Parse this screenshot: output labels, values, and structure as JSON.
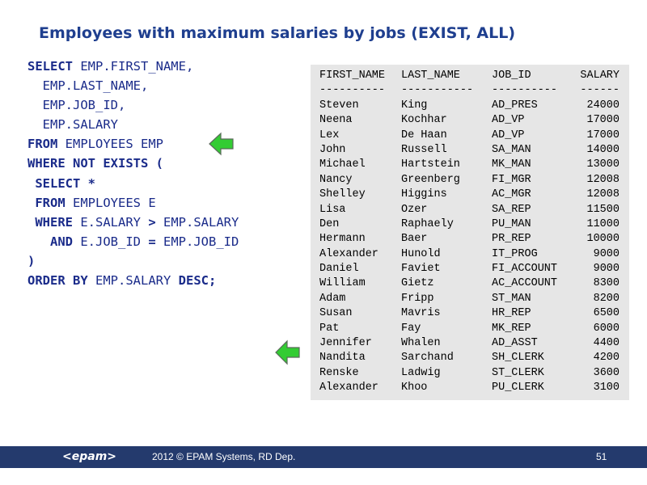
{
  "title": "Employees with maximum salaries by jobs (EXIST, ALL)",
  "sql": [
    [
      {
        "t": "SELECT ",
        "kw": true
      },
      {
        "t": "EMP.FIRST_NAME,"
      }
    ],
    [
      {
        "t": "  EMP.LAST_NAME,"
      }
    ],
    [
      {
        "t": "  EMP.JOB_ID,"
      }
    ],
    [
      {
        "t": "  EMP.SALARY"
      }
    ],
    [
      {
        "t": "FROM ",
        "kw": true
      },
      {
        "t": "EMPLOYEES EMP"
      }
    ],
    [
      {
        "t": "WHERE NOT EXISTS (",
        "kw": true
      }
    ],
    [
      {
        "t": " SELECT *",
        "kw": true
      }
    ],
    [
      {
        "t": " FROM ",
        "kw": true
      },
      {
        "t": "EMPLOYEES E"
      }
    ],
    [
      {
        "t": " WHERE ",
        "kw": true
      },
      {
        "t": "E.SALARY "
      },
      {
        "t": ">",
        "kw": true
      },
      {
        "t": " EMP.SALARY"
      }
    ],
    [
      {
        "t": "   AND ",
        "kw": true
      },
      {
        "t": "E.JOB_ID "
      },
      {
        "t": "=",
        "kw": true
      },
      {
        "t": " EMP.JOB_ID"
      }
    ],
    [
      {
        "t": ")",
        "kw": true
      }
    ],
    [
      {
        "t": "ORDER BY ",
        "kw": true
      },
      {
        "t": "EMP.SALARY "
      },
      {
        "t": "DESC;",
        "kw": true
      }
    ]
  ],
  "result": {
    "headers": [
      "FIRST_NAME",
      "LAST_NAME",
      "JOB_ID",
      "SALARY"
    ],
    "separator": [
      "----------",
      "-----------",
      "----------",
      "------"
    ],
    "rows": [
      [
        "Steven",
        "King",
        "AD_PRES",
        "24000"
      ],
      [
        "Neena",
        "Kochhar",
        "AD_VP",
        "17000"
      ],
      [
        "Lex",
        "De Haan",
        "AD_VP",
        "17000"
      ],
      [
        "John",
        "Russell",
        "SA_MAN",
        "14000"
      ],
      [
        "Michael",
        "Hartstein",
        "MK_MAN",
        "13000"
      ],
      [
        "Nancy",
        "Greenberg",
        "FI_MGR",
        "12008"
      ],
      [
        "Shelley",
        "Higgins",
        "AC_MGR",
        "12008"
      ],
      [
        "Lisa",
        "Ozer",
        "SA_REP",
        "11500"
      ],
      [
        "Den",
        "Raphaely",
        "PU_MAN",
        "11000"
      ],
      [
        "Hermann",
        "Baer",
        "PR_REP",
        "10000"
      ],
      [
        "Alexander",
        "Hunold",
        "IT_PROG",
        "9000"
      ],
      [
        "Daniel",
        "Faviet",
        "FI_ACCOUNT",
        "9000"
      ],
      [
        "William",
        "Gietz",
        "AC_ACCOUNT",
        "8300"
      ],
      [
        "Adam",
        "Fripp",
        "ST_MAN",
        "8200"
      ],
      [
        "Susan",
        "Mavris",
        "HR_REP",
        "6500"
      ],
      [
        "Pat",
        "Fay",
        "MK_REP",
        "6000"
      ],
      [
        "Jennifer",
        "Whalen",
        "AD_ASST",
        "4400"
      ],
      [
        "Nandita",
        "Sarchand",
        "SH_CLERK",
        "4200"
      ],
      [
        "Renske",
        "Ladwig",
        "ST_CLERK",
        "3600"
      ],
      [
        "Alexander",
        "Khoo",
        "PU_CLERK",
        "3100"
      ]
    ]
  },
  "arrows": [
    "arrow-left-icon",
    "arrow-left-icon"
  ],
  "colors": {
    "title": "#1f3f8f",
    "sql": "#1a2b8a",
    "footer": "#243a6d",
    "result_bg": "#e6e6e6",
    "arrow_fill": "#33cc33"
  },
  "footer": {
    "logo": "<epam>",
    "copyright": "2012 © EPAM Systems, RD Dep.",
    "page_number": "51"
  }
}
